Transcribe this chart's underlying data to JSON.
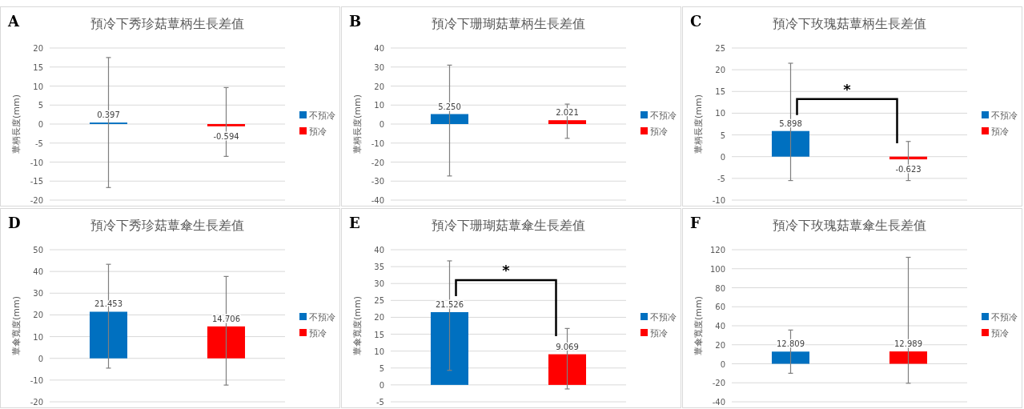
{
  "chart_data": [
    {
      "type": "bar",
      "title": "預冷下秀珍菇蕈柄生長差值",
      "ylabel": "蕈柄長度(mm)",
      "categories": [
        null
      ],
      "ylim": [
        -20,
        20
      ],
      "yticks": [
        -20,
        -15,
        -10,
        -5,
        0,
        5,
        10,
        15,
        20
      ],
      "grid": "y",
      "legend": "right",
      "data_labels": true,
      "annotations": [
        "A"
      ],
      "series": [
        {
          "name": "不預冷",
          "color": "#0070c0",
          "values": [
            0.397
          ],
          "errors": [
            [
              -16.7,
              17.5
            ]
          ]
        },
        {
          "name": "預冷",
          "color": "#ff0000",
          "values": [
            -0.594
          ],
          "errors": [
            [
              -8.5,
              9.6
            ]
          ]
        }
      ]
    },
    {
      "type": "bar",
      "title": "預冷下珊瑚菇蕈柄生長差值",
      "ylabel": "蕈柄長度(mm)",
      "categories": [
        null
      ],
      "ylim": [
        -40,
        40
      ],
      "yticks": [
        -40,
        -30,
        -20,
        -10,
        0,
        10,
        20,
        30,
        40
      ],
      "grid": "y",
      "legend": "right",
      "annotations": [
        "B"
      ],
      "series": [
        {
          "name": "不預冷",
          "color": "#0070c0",
          "values": [
            5.25
          ],
          "value_labels": [
            "5.250"
          ],
          "errors": [
            [
              -27.3,
              31
            ]
          ]
        },
        {
          "name": "預冷",
          "color": "#ff0000",
          "values": [
            2.021
          ],
          "value_labels": [
            "2.021"
          ],
          "errors": [
            [
              -7.5,
              10.5
            ]
          ]
        }
      ]
    },
    {
      "type": "bar",
      "title": "預冷下玫瑰菇蕈柄生長差值",
      "ylabel": "蕈柄長度(mm)",
      "categories": [
        null
      ],
      "ylim": [
        -10,
        25
      ],
      "yticks": [
        -10,
        -5,
        0,
        5,
        10,
        15,
        20,
        25
      ],
      "grid": "y",
      "legend": "right",
      "data_labels": true,
      "annotations": [
        "C",
        "*"
      ],
      "series": [
        {
          "name": "不預冷",
          "color": "#0070c0",
          "values": [
            5.898
          ],
          "errors": [
            [
              -5.5,
              21.5
            ]
          ]
        },
        {
          "name": "預冷",
          "color": "#ff0000",
          "values": [
            -0.623
          ],
          "errors": [
            [
              -5.5,
              3.5
            ]
          ]
        }
      ]
    },
    {
      "type": "bar",
      "title": "預冷下秀珍菇蕈傘生長差值",
      "ylabel": "蕈傘寬度(mm)",
      "categories": [
        null
      ],
      "ylim": [
        -20,
        50
      ],
      "yticks": [
        -20,
        -10,
        0,
        10,
        20,
        30,
        40,
        50
      ],
      "grid": "y",
      "legend": "right",
      "data_labels": true,
      "annotations": [
        "D"
      ],
      "series": [
        {
          "name": "不預冷",
          "color": "#0070c0",
          "values": [
            21.453
          ],
          "errors": [
            [
              -4.5,
              43.3
            ]
          ]
        },
        {
          "name": "預冷",
          "color": "#ff0000",
          "values": [
            14.706
          ],
          "errors": [
            [
              -12.3,
              37.7
            ]
          ]
        }
      ]
    },
    {
      "type": "bar",
      "title": "預冷下珊瑚菇蕈傘生長差值",
      "ylabel": "蕈傘寬度(mm)",
      "categories": [
        null
      ],
      "ylim": [
        -5,
        40
      ],
      "yticks": [
        -5,
        0,
        5,
        10,
        15,
        20,
        25,
        30,
        35,
        40
      ],
      "grid": "y",
      "legend": "right",
      "data_labels": true,
      "annotations": [
        "E",
        "*"
      ],
      "series": [
        {
          "name": "不預冷",
          "color": "#0070c0",
          "values": [
            21.526
          ],
          "errors": [
            [
              4.3,
              36.7
            ]
          ]
        },
        {
          "name": "預冷",
          "color": "#ff0000",
          "values": [
            9.069
          ],
          "errors": [
            [
              -1.2,
              16.7
            ]
          ]
        }
      ]
    },
    {
      "type": "bar",
      "title": "預冷下玫瑰菇蕈傘生長差值",
      "ylabel": "蕈傘寬度(mm)",
      "categories": [
        null
      ],
      "ylim": [
        -40,
        120
      ],
      "yticks": [
        -40,
        -20,
        0,
        20,
        40,
        60,
        80,
        100,
        120
      ],
      "grid": "y",
      "legend": "right",
      "data_labels": true,
      "annotations": [
        "F"
      ],
      "series": [
        {
          "name": "不預冷",
          "color": "#0070c0",
          "values": [
            12.809
          ],
          "errors": [
            [
              -10,
              35.5
            ]
          ]
        },
        {
          "name": "預冷",
          "color": "#ff0000",
          "values": [
            12.989
          ],
          "errors": [
            [
              -20.5,
              112
            ]
          ]
        }
      ]
    }
  ]
}
